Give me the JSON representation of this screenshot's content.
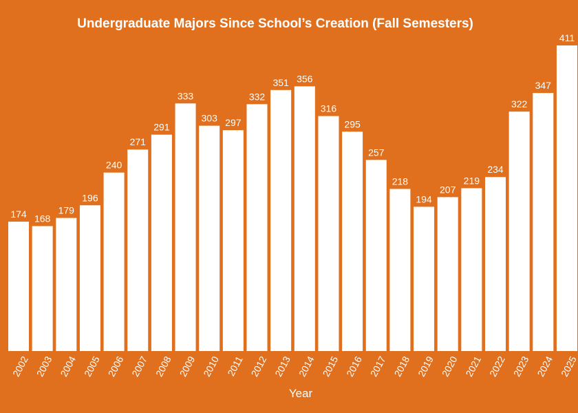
{
  "chart_data": {
    "type": "bar",
    "title": "Undergraduate Majors Since School’s Creation (Fall Semesters)",
    "xlabel": "Year",
    "ylabel": "",
    "categories": [
      "2002",
      "2003",
      "2004",
      "2005",
      "2006",
      "2007",
      "2008",
      "2009",
      "2010",
      "2011",
      "2012",
      "2013",
      "2014",
      "2015",
      "2016",
      "2017",
      "2018",
      "2019",
      "2020",
      "2021",
      "2022",
      "2023",
      "2024",
      "2025"
    ],
    "values": [
      174,
      168,
      179,
      196,
      240,
      271,
      291,
      333,
      303,
      297,
      332,
      351,
      356,
      316,
      295,
      257,
      218,
      194,
      207,
      219,
      234,
      322,
      347,
      411
    ],
    "ylim": [
      0,
      411
    ],
    "grid": false,
    "legend": "none",
    "colors": {
      "background": "#E0701E",
      "bar": "#FFFFFF",
      "text": "#FFFFFF"
    }
  }
}
